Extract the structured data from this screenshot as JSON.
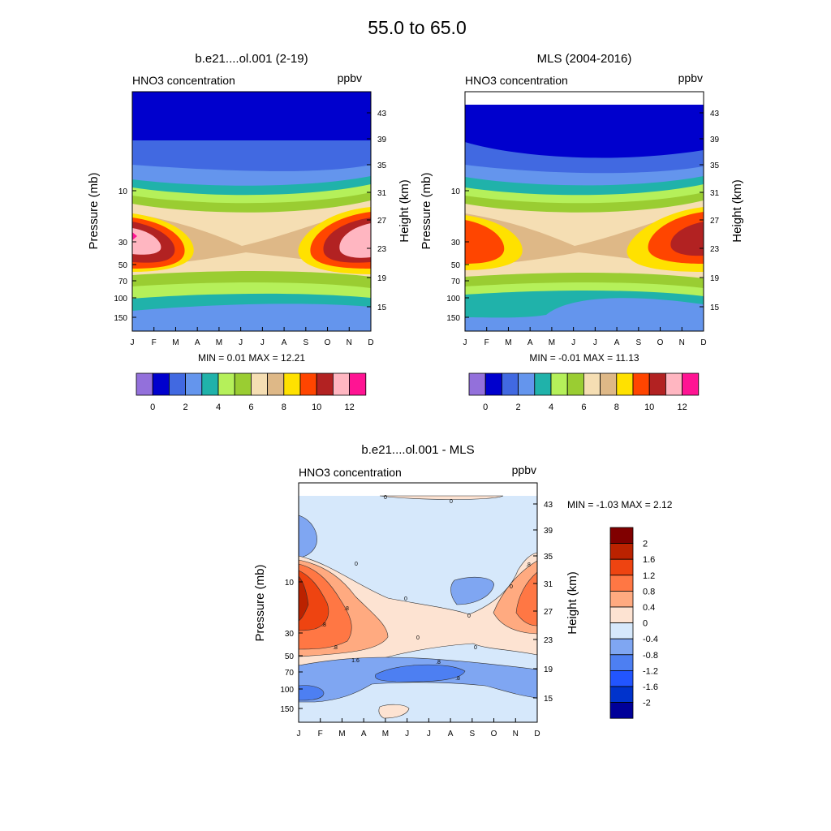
{
  "page_title": "55.0 to  65.0",
  "axes_common": {
    "months": [
      "J",
      "F",
      "M",
      "A",
      "M",
      "J",
      "J",
      "A",
      "S",
      "O",
      "N",
      "D"
    ],
    "pressure_ticks": [
      "10",
      "30",
      "50",
      "70",
      "100",
      "150"
    ],
    "height_ticks": [
      "43",
      "39",
      "35",
      "31",
      "27",
      "23",
      "19",
      "15"
    ],
    "ylabel_left": "Pressure (mb)",
    "ylabel_right": "Height (km)",
    "field_label": "HNO3 concentration",
    "units": "ppbv"
  },
  "abs_colors": [
    "#9370db",
    "#0000cd",
    "#4169e1",
    "#6495ed",
    "#20b2aa",
    "#b5f05a",
    "#9acd32",
    "#f5deb3",
    "#deb887",
    "#ffe100",
    "#ff4500",
    "#b22222",
    "#ffb6c1",
    "#ff1493"
  ],
  "diff_colors": [
    "#800000",
    "#bb2200",
    "#ee4411",
    "#ff7744",
    "#ffaa80",
    "#fde3d2",
    "#d6e8fb",
    "#7fa6f2",
    "#4d7ff2",
    "#2255ff",
    "#0033cc",
    "#000099"
  ],
  "chart_data": [
    {
      "type": "heatmap",
      "title": "b.e21....ol.001 (2-19)",
      "stats": "MIN =   0.01  MAX =  12.21",
      "min": 0.01,
      "max": 12.21,
      "colorbar_labels": [
        "0",
        "2",
        "4",
        "6",
        "8",
        "10",
        "12"
      ]
    },
    {
      "type": "heatmap",
      "title": "MLS (2004-2016)",
      "stats": "MIN =  -0.01  MAX =  11.13",
      "min": -0.01,
      "max": 11.13,
      "colorbar_labels": [
        "0",
        "2",
        "4",
        "6",
        "8",
        "10",
        "12"
      ]
    },
    {
      "type": "heatmap",
      "title": "b.e21....ol.001 - MLS",
      "stats": "MIN =  -1.03  MAX =   2.12",
      "min": -1.03,
      "max": 2.12,
      "colorbar_labels": [
        "2",
        "1.6",
        "1.2",
        "0.8",
        "0.4",
        "0",
        "-0.4",
        "-0.8",
        "-1.2",
        "-1.6",
        "-2"
      ],
      "contour_labels": [
        "0",
        "0",
        "0",
        "0",
        "0",
        "0",
        "0",
        "0",
        "1.6",
        ".8",
        ".8",
        ".8",
        ".8",
        ".8",
        ".8"
      ]
    }
  ]
}
